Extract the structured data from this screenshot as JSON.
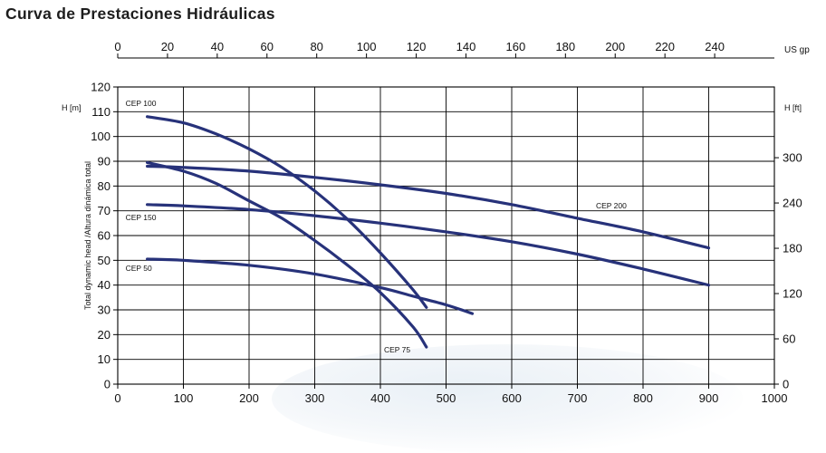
{
  "title": "Curva de Prestaciones Hidráulicas",
  "colors": {
    "curve": "#27327a",
    "grid": "#000000",
    "text": "#111111"
  },
  "chart_data": {
    "type": "line",
    "title": "Curva de Prestaciones Hidráulicas",
    "grid": true,
    "x_axis": {
      "ticks": [
        0,
        100,
        200,
        300,
        400,
        500,
        600,
        700,
        800,
        900,
        1000
      ],
      "range": [
        0,
        1000
      ]
    },
    "x_top_axis": {
      "label": "US gp",
      "ticks": [
        0,
        20,
        40,
        60,
        80,
        100,
        120,
        140,
        160,
        180,
        200,
        220,
        240
      ],
      "range": [
        0,
        264
      ]
    },
    "y_axis": {
      "label": "Total dynamic head /Altura dinámica total",
      "unit": "H [m]",
      "ticks": [
        0,
        10,
        20,
        30,
        40,
        50,
        60,
        70,
        80,
        90,
        100,
        110,
        120
      ],
      "range": [
        0,
        120
      ]
    },
    "y_right_axis": {
      "unit": "H [ft]",
      "ticks": [
        0,
        60,
        120,
        180,
        240,
        300
      ],
      "range": [
        0,
        393.7
      ]
    },
    "series": [
      {
        "name": "CEP 100",
        "x": [
          45,
          100,
          150,
          200,
          250,
          300,
          350,
          400,
          450,
          470
        ],
        "y": [
          108,
          105.5,
          101,
          95,
          87.5,
          78,
          66.5,
          53,
          38,
          31
        ]
      },
      {
        "name": "CEP 200",
        "x": [
          45,
          100,
          200,
          300,
          400,
          500,
          600,
          700,
          800,
          900
        ],
        "y": [
          88,
          87.5,
          86,
          83.5,
          80.5,
          77,
          72.5,
          67,
          61.5,
          55
        ]
      },
      {
        "name": "CEP 150",
        "x": [
          45,
          100,
          200,
          300,
          400,
          500,
          600,
          700,
          800,
          900
        ],
        "y": [
          72.5,
          72,
          70.5,
          68,
          65,
          61.5,
          57.5,
          52.5,
          46.5,
          40
        ]
      },
      {
        "name": "CEP 75",
        "x": [
          45,
          100,
          150,
          200,
          250,
          300,
          350,
          400,
          450,
          470
        ],
        "y": [
          89.5,
          86,
          81,
          74,
          67,
          58,
          48,
          37,
          23,
          15
        ]
      },
      {
        "name": "CEP 50",
        "x": [
          45,
          100,
          200,
          300,
          400,
          450,
          500,
          540
        ],
        "y": [
          50.5,
          50,
          48,
          44.5,
          39,
          35.5,
          32,
          28.5
        ]
      }
    ],
    "labels": [
      "CEP 100",
      "CEP 200",
      "CEP 150",
      "CEP 75",
      "CEP 50"
    ]
  }
}
